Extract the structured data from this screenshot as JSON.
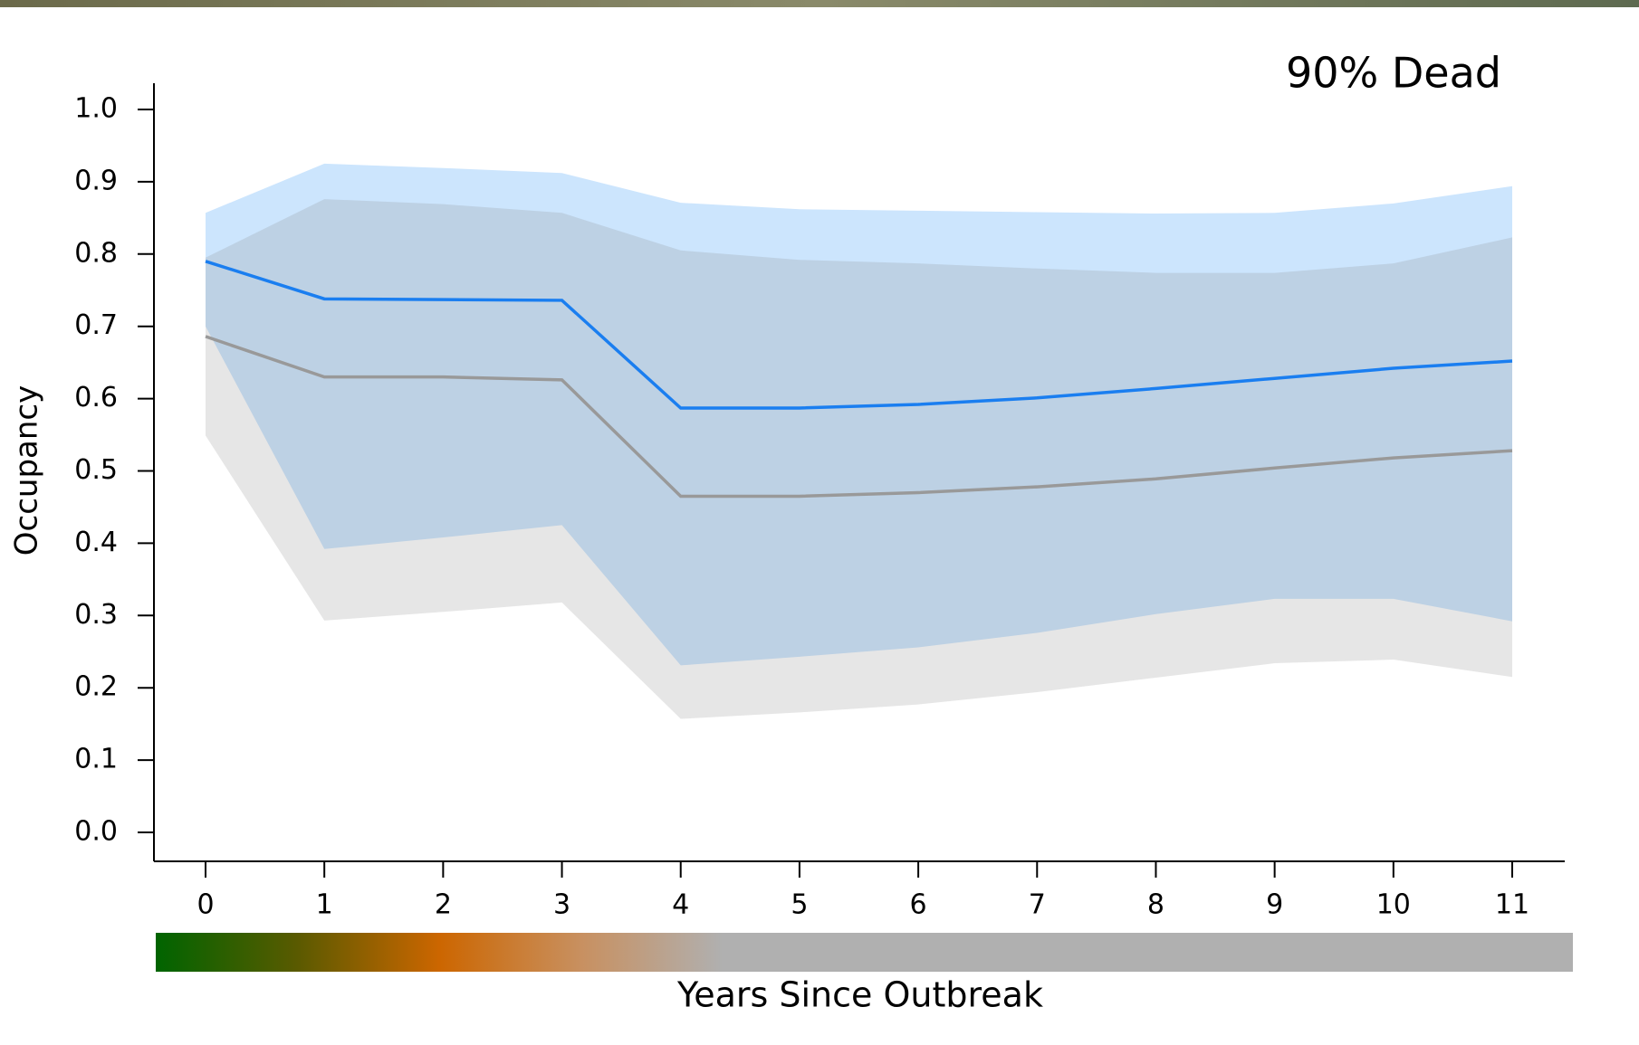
{
  "chart_data": {
    "type": "line",
    "title": "90% Dead",
    "y_label": "Occupancy",
    "x_label": "Years Since Outbreak",
    "x": [
      0,
      1,
      2,
      3,
      4,
      5,
      6,
      7,
      8,
      9,
      10,
      11
    ],
    "xlim": [
      0,
      11
    ],
    "xticks": [
      0,
      1,
      2,
      3,
      4,
      5,
      6,
      7,
      8,
      9,
      10,
      11
    ],
    "ylim": [
      0,
      1
    ],
    "yticks": [
      {
        "value": 0,
        "label": "0.0"
      },
      0.1,
      0.2,
      0.3,
      0.4,
      0.5,
      0.6,
      0.7,
      0.8,
      0.9,
      {
        "value": 1,
        "label": "1.0"
      }
    ],
    "series": [
      {
        "color": "#1a7ef0",
        "band_color": "#cce5fd",
        "values": [
          0.79,
          0.738,
          0.737,
          0.736,
          0.587,
          0.587,
          0.592,
          0.601,
          0.614,
          0.628,
          0.642,
          0.652
        ],
        "upper": [
          0.857,
          0.925,
          0.919,
          0.912,
          0.871,
          0.862,
          0.86,
          0.858,
          0.856,
          0.857,
          0.87,
          0.894
        ],
        "lower": [
          0.7,
          0.392,
          0.408,
          0.425,
          0.231,
          0.243,
          0.256,
          0.276,
          0.302,
          0.323,
          0.323,
          0.292
        ]
      },
      {
        "color": "#999999",
        "band_color": "rgba(128,128,128,0.2)",
        "values": [
          0.686,
          0.63,
          0.63,
          0.626,
          0.465,
          0.465,
          0.47,
          0.478,
          0.489,
          0.504,
          0.518,
          0.528
        ],
        "upper": [
          0.795,
          0.876,
          0.869,
          0.857,
          0.805,
          0.792,
          0.787,
          0.78,
          0.774,
          0.774,
          0.787,
          0.823
        ],
        "lower": [
          0.549,
          0.293,
          0.305,
          0.318,
          0.157,
          0.166,
          0.177,
          0.194,
          0.214,
          0.234,
          0.239,
          0.215
        ]
      }
    ]
  }
}
